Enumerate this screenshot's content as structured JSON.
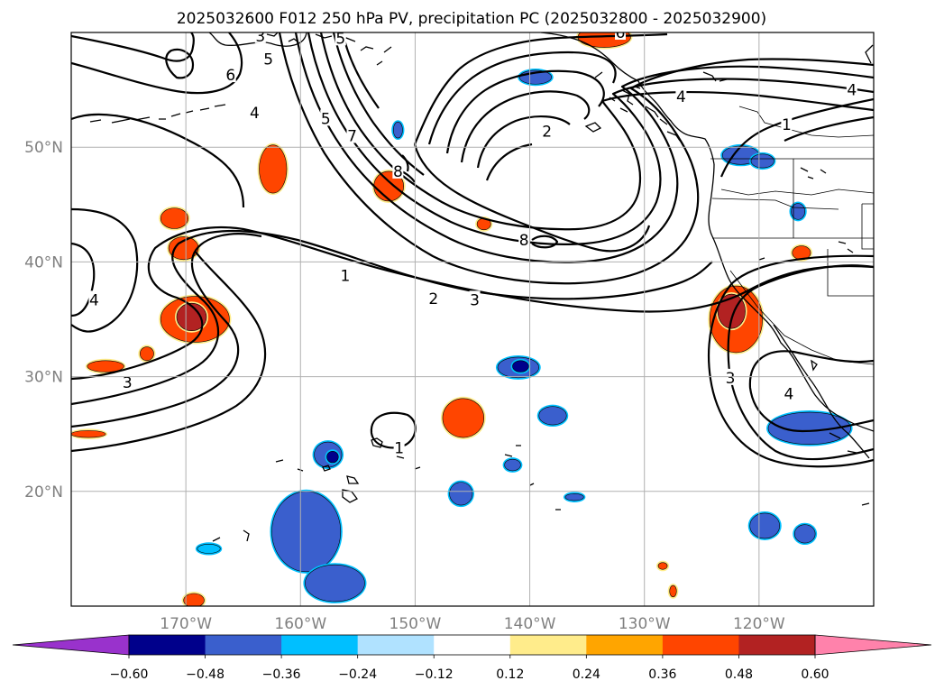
{
  "chart_data": {
    "type": "map",
    "title": "2025032600 F012 250 hPa PV, precipitation PC (2025032800 - 2025032900)",
    "extent": {
      "lon_min": -180,
      "lon_max": -110,
      "lat_min": 10,
      "lat_max": 60
    },
    "grid": true,
    "x_ticks": [
      {
        "lon": -170,
        "label": "170°W"
      },
      {
        "lon": -160,
        "label": "160°W"
      },
      {
        "lon": -150,
        "label": "150°W"
      },
      {
        "lon": -140,
        "label": "140°W"
      },
      {
        "lon": -130,
        "label": "130°W"
      },
      {
        "lon": -120,
        "label": "120°W"
      }
    ],
    "y_ticks": [
      {
        "lat": 20,
        "label": "20°N"
      },
      {
        "lat": 30,
        "label": "30°N"
      },
      {
        "lat": 40,
        "label": "40°N"
      },
      {
        "lat": 50,
        "label": "50°N"
      }
    ],
    "colorbar": {
      "orientation": "horizontal",
      "extend": "both",
      "colors": [
        "#9932cc",
        "#00008b",
        "#3a5fcd",
        "#00bfff",
        "#b0e2ff",
        "#ffffff",
        "#ffec8b",
        "#ffa500",
        "#ff4500",
        "#b22222",
        "#ff82ab"
      ],
      "ticks": [
        "−0.60",
        "−0.48",
        "−0.36",
        "−0.24",
        "−0.12",
        "0.12",
        "0.24",
        "0.36",
        "0.48",
        "0.60"
      ]
    },
    "contour_labels": [
      {
        "text": "3",
        "lon": -163.5,
        "lat": 59.7
      },
      {
        "text": "5",
        "lon": -156.5,
        "lat": 59.5
      },
      {
        "text": "5",
        "lon": -162.8,
        "lat": 57.7
      },
      {
        "text": "6",
        "lon": -166.1,
        "lat": 56.3
      },
      {
        "text": "4",
        "lon": -164.0,
        "lat": 53.0
      },
      {
        "text": "5",
        "lon": -157.8,
        "lat": 52.5
      },
      {
        "text": "7",
        "lon": -155.5,
        "lat": 51.0
      },
      {
        "text": "8",
        "lon": -151.5,
        "lat": 47.9
      },
      {
        "text": "8",
        "lon": -140.5,
        "lat": 41.9
      },
      {
        "text": "1",
        "lon": -156.1,
        "lat": 38.8
      },
      {
        "text": "2",
        "lon": -148.4,
        "lat": 36.8
      },
      {
        "text": "3",
        "lon": -144.8,
        "lat": 36.7
      },
      {
        "text": "4",
        "lon": -178.0,
        "lat": 36.7
      },
      {
        "text": "3",
        "lon": -175.1,
        "lat": 29.5
      },
      {
        "text": "1",
        "lon": -151.4,
        "lat": 23.8
      },
      {
        "text": "6",
        "lon": -132.1,
        "lat": 60.0
      },
      {
        "text": "4",
        "lon": -126.8,
        "lat": 54.4
      },
      {
        "text": "2",
        "lon": -138.5,
        "lat": 51.4
      },
      {
        "text": "1",
        "lon": -117.6,
        "lat": 52.0
      },
      {
        "text": "4",
        "lon": -111.9,
        "lat": 55.0
      },
      {
        "text": "3",
        "lon": -122.5,
        "lat": 29.9
      },
      {
        "text": "4",
        "lon": -117.4,
        "lat": 28.5
      }
    ],
    "precip_cells": [
      {
        "value": 0.4,
        "lon": -133.5,
        "lat": 59.6,
        "rx": 2.3,
        "ry": 0.9
      },
      {
        "value": 0.4,
        "lon": -162.4,
        "lat": 48.1,
        "rx": 1.2,
        "ry": 2.1
      },
      {
        "value": 0.4,
        "lon": -171.0,
        "lat": 43.8,
        "rx": 1.2,
        "ry": 0.9
      },
      {
        "value": 0.4,
        "lon": -170.2,
        "lat": 41.2,
        "rx": 1.3,
        "ry": 1.0
      },
      {
        "value": 0.45,
        "lon": -169.2,
        "lat": 35.0,
        "rx": 3.0,
        "ry": 2.0
      },
      {
        "value": 0.52,
        "lon": -169.5,
        "lat": 35.2,
        "rx": 1.3,
        "ry": 1.2
      },
      {
        "value": 0.4,
        "lon": -173.4,
        "lat": 32.0,
        "rx": 0.6,
        "ry": 0.6
      },
      {
        "value": 0.4,
        "lon": -177.0,
        "lat": 30.9,
        "rx": 1.6,
        "ry": 0.5
      },
      {
        "value": 0.4,
        "lon": -178.5,
        "lat": 25.0,
        "rx": 1.5,
        "ry": 0.3
      },
      {
        "value": 0.4,
        "lon": -152.3,
        "lat": 46.6,
        "rx": 1.3,
        "ry": 1.3
      },
      {
        "value": 0.4,
        "lon": -144.0,
        "lat": 43.3,
        "rx": 0.6,
        "ry": 0.5
      },
      {
        "value": 0.4,
        "lon": -145.8,
        "lat": 26.4,
        "rx": 1.8,
        "ry": 1.7
      },
      {
        "value": 0.45,
        "lon": -122.0,
        "lat": 35.0,
        "rx": 2.3,
        "ry": 2.9
      },
      {
        "value": 0.52,
        "lon": -122.4,
        "lat": 35.7,
        "rx": 1.2,
        "ry": 1.5
      },
      {
        "value": 0.4,
        "lon": -116.3,
        "lat": 40.8,
        "rx": 0.8,
        "ry": 0.6
      },
      {
        "value": 0.4,
        "lon": -169.3,
        "lat": 10.5,
        "rx": 0.9,
        "ry": 0.6
      },
      {
        "value": 0.4,
        "lon": -128.4,
        "lat": 13.5,
        "rx": 0.4,
        "ry": 0.3
      },
      {
        "value": 0.4,
        "lon": -127.5,
        "lat": 11.3,
        "rx": 0.3,
        "ry": 0.5
      },
      {
        "value": -0.4,
        "lon": -139.5,
        "lat": 56.1,
        "rx": 1.4,
        "ry": 0.6
      },
      {
        "value": -0.4,
        "lon": -121.6,
        "lat": 49.3,
        "rx": 1.6,
        "ry": 0.8
      },
      {
        "value": -0.4,
        "lon": -119.7,
        "lat": 48.8,
        "rx": 1.0,
        "ry": 0.6
      },
      {
        "value": -0.4,
        "lon": -116.6,
        "lat": 44.4,
        "rx": 0.6,
        "ry": 0.7
      },
      {
        "value": -0.4,
        "lon": -151.5,
        "lat": 51.5,
        "rx": 0.4,
        "ry": 0.7
      },
      {
        "value": -0.4,
        "lon": -141.0,
        "lat": 30.8,
        "rx": 1.8,
        "ry": 0.9
      },
      {
        "value": -0.55,
        "lon": -140.8,
        "lat": 30.9,
        "rx": 0.7,
        "ry": 0.5
      },
      {
        "value": -0.4,
        "lon": -138.0,
        "lat": 26.6,
        "rx": 1.2,
        "ry": 0.8
      },
      {
        "value": -0.4,
        "lon": -157.6,
        "lat": 23.2,
        "rx": 1.2,
        "ry": 1.1
      },
      {
        "value": -0.55,
        "lon": -157.2,
        "lat": 23.0,
        "rx": 0.5,
        "ry": 0.5
      },
      {
        "value": -0.4,
        "lon": -159.5,
        "lat": 16.5,
        "rx": 3.0,
        "ry": 3.5
      },
      {
        "value": -0.4,
        "lon": -157.0,
        "lat": 12.0,
        "rx": 2.6,
        "ry": 1.6
      },
      {
        "value": -0.4,
        "lon": -146.0,
        "lat": 19.8,
        "rx": 1.0,
        "ry": 1.0
      },
      {
        "value": -0.4,
        "lon": -115.6,
        "lat": 25.5,
        "rx": 3.6,
        "ry": 1.4
      },
      {
        "value": -0.4,
        "lon": -119.5,
        "lat": 17.0,
        "rx": 1.3,
        "ry": 1.1
      },
      {
        "value": -0.4,
        "lon": -116.0,
        "lat": 16.3,
        "rx": 0.9,
        "ry": 0.8
      },
      {
        "value": -0.4,
        "lon": -141.5,
        "lat": 22.3,
        "rx": 0.7,
        "ry": 0.5
      },
      {
        "value": -0.4,
        "lon": -136.1,
        "lat": 19.5,
        "rx": 0.8,
        "ry": 0.3
      },
      {
        "value": -0.3,
        "lon": -168.0,
        "lat": 15.0,
        "rx": 1.0,
        "ry": 0.4
      }
    ]
  }
}
